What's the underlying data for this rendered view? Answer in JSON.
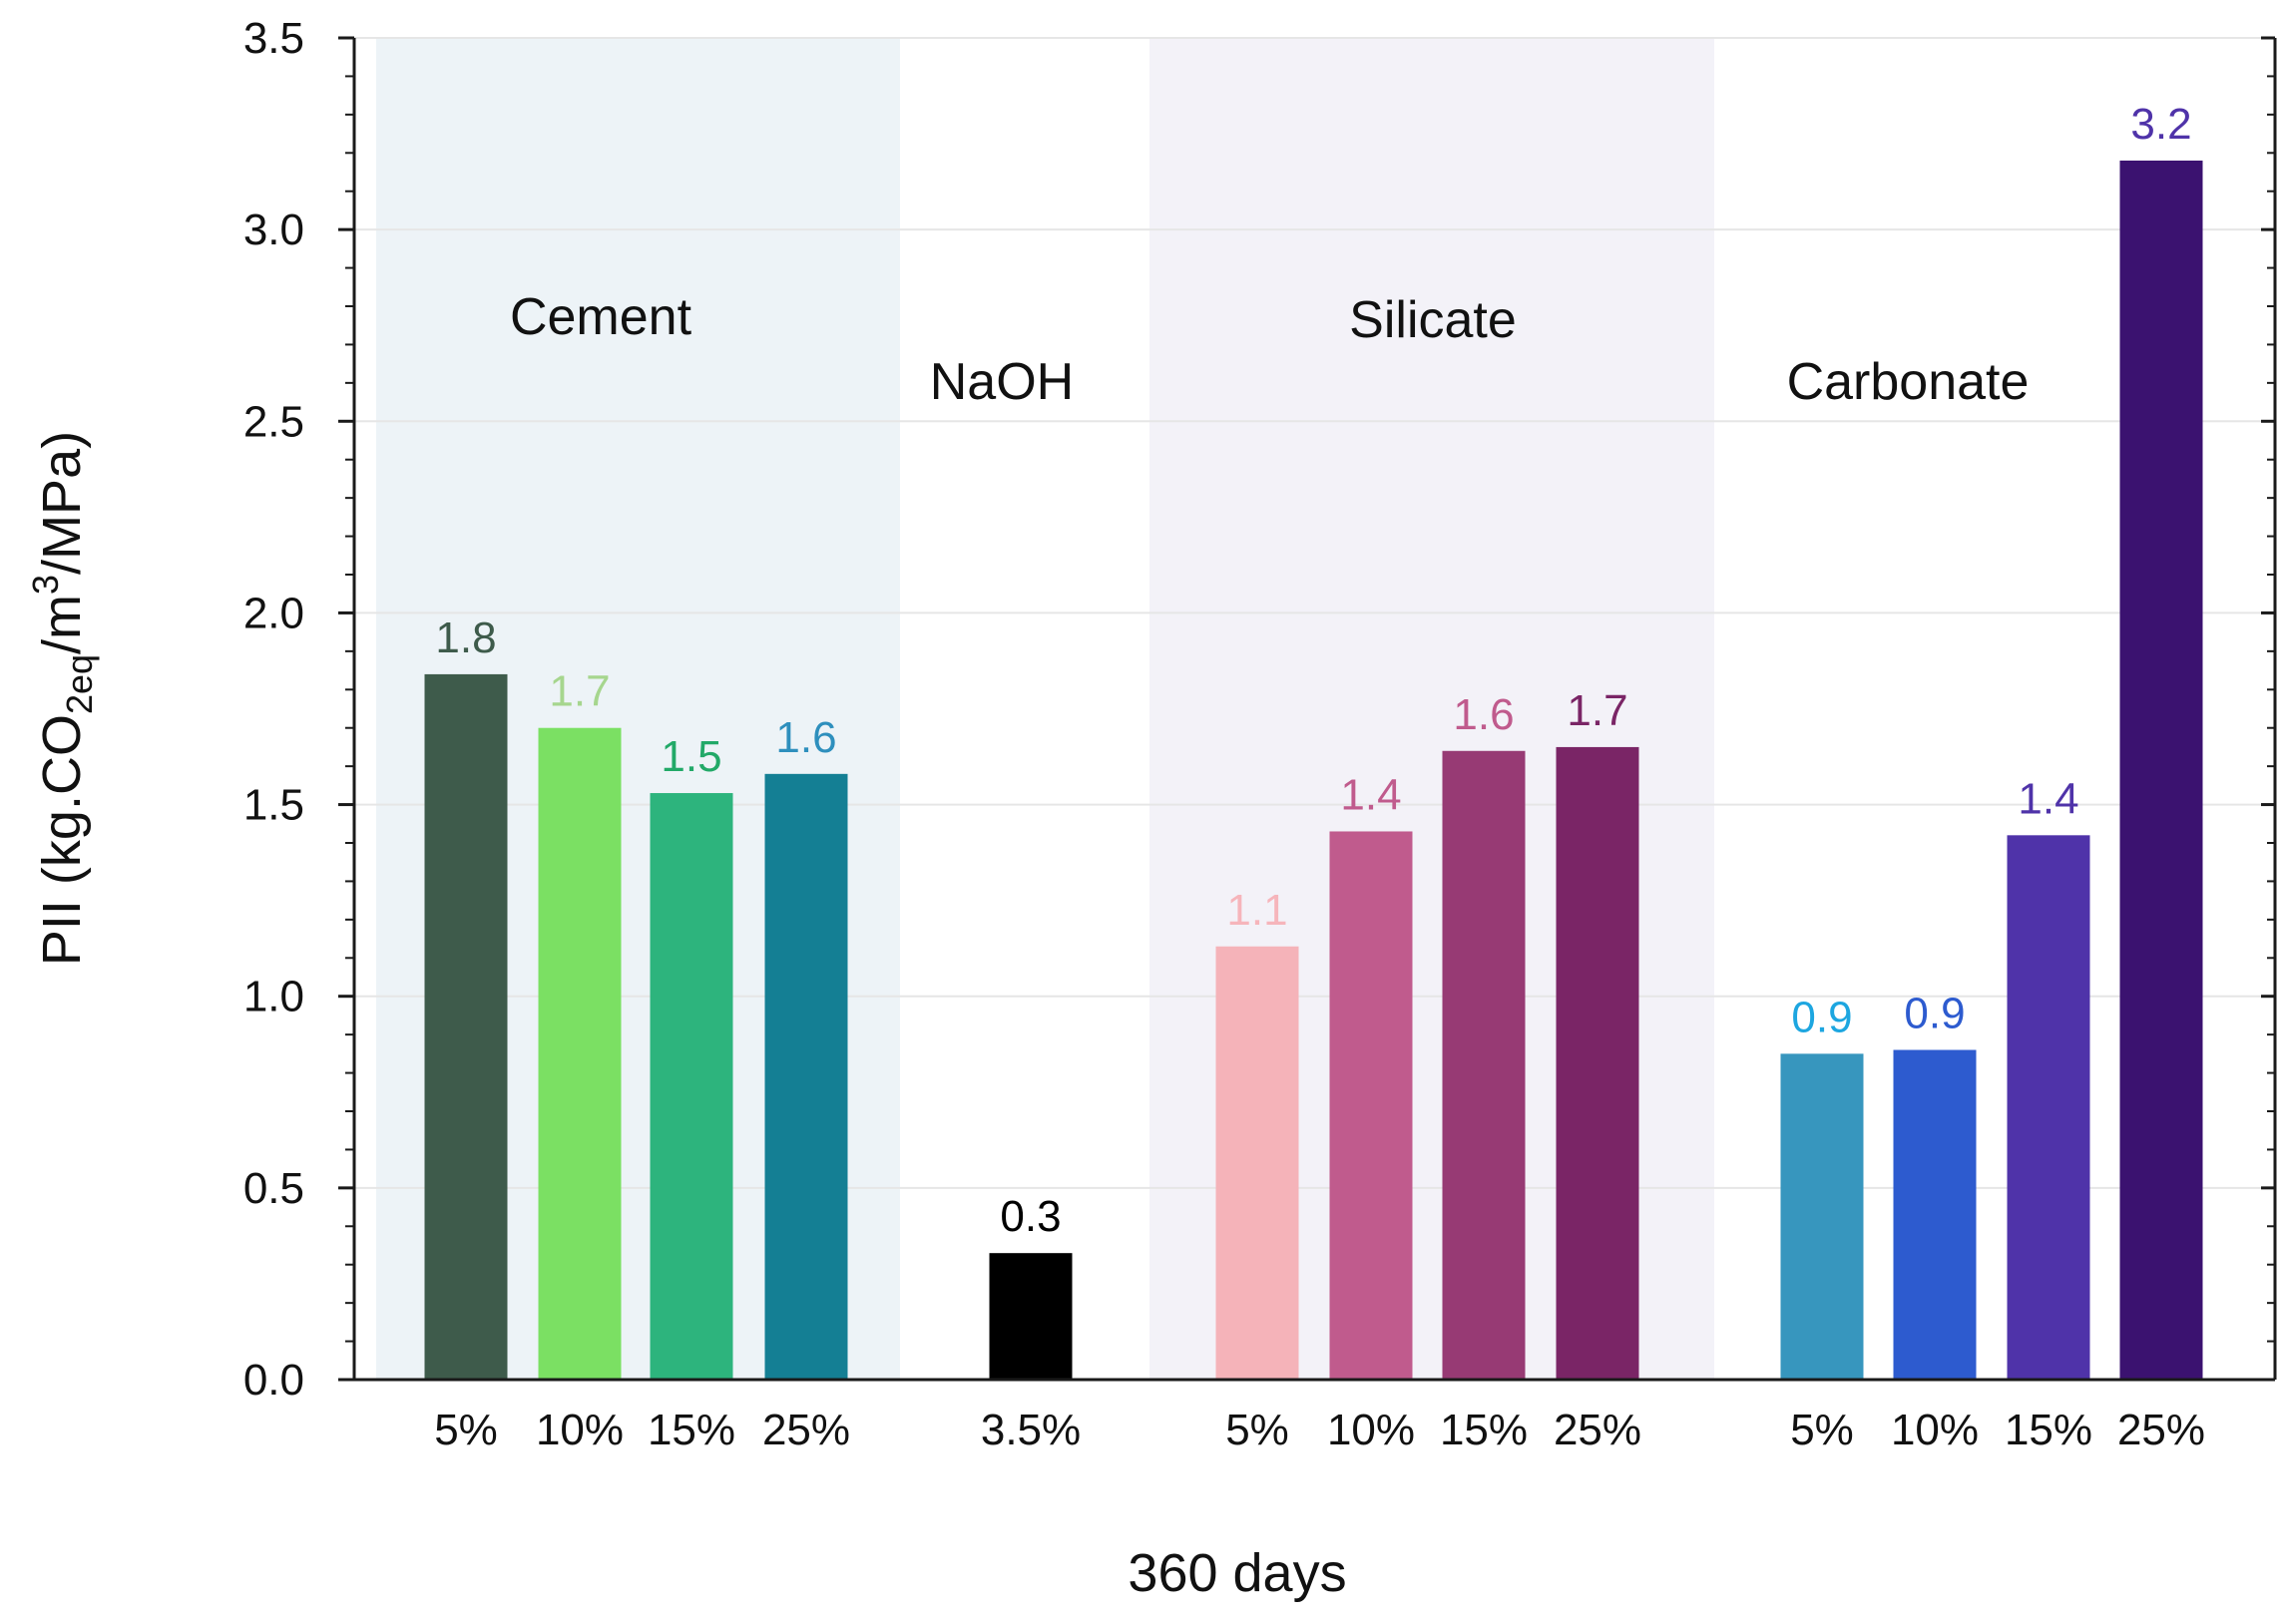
{
  "chart_data": {
    "type": "bar",
    "xlabel": "360  days",
    "ylabel": "PII (kg.CO2eq/m3/MPa)",
    "ylabel_parts": {
      "pre": "PII (kg.CO",
      "sub": "2eq",
      "mid": "/m",
      "sup": "3",
      "post": "/MPa)"
    },
    "ylim": [
      0,
      3.5
    ],
    "yticks": [
      "0.0",
      "0.5",
      "1.0",
      "1.5",
      "2.0",
      "2.5",
      "3.0",
      "3.5"
    ],
    "grid": true,
    "groups": [
      {
        "name": "Cement",
        "shaded": true,
        "shade_color": "#edf3f7",
        "bars": [
          {
            "category": "5%",
            "value": 1.84,
            "label": "1.8",
            "color": "#3e5b4b",
            "label_color": "#3e5b4b"
          },
          {
            "category": "10%",
            "value": 1.7,
            "label": "1.7",
            "color": "#7be063",
            "label_color": "#a6d68e"
          },
          {
            "category": "15%",
            "value": 1.53,
            "label": "1.5",
            "color": "#2db47d",
            "label_color": "#22a968"
          },
          {
            "category": "25%",
            "value": 1.58,
            "label": "1.6",
            "color": "#147f94",
            "label_color": "#2e8fbd"
          }
        ]
      },
      {
        "name": "NaOH",
        "shaded": false,
        "shade_color": "#ffffff",
        "bars": [
          {
            "category": "3.5%",
            "value": 0.33,
            "label": "0.3",
            "color": "#000000",
            "label_color": "#000000"
          }
        ]
      },
      {
        "name": "Silicate",
        "shaded": true,
        "shade_color": "#f3f2f8",
        "bars": [
          {
            "category": "5%",
            "value": 1.13,
            "label": "1.1",
            "color": "#f5b3b9",
            "label_color": "#f6b5bb"
          },
          {
            "category": "10%",
            "value": 1.43,
            "label": "1.4",
            "color": "#c05b8d",
            "label_color": "#c05b8d"
          },
          {
            "category": "15%",
            "value": 1.64,
            "label": "1.6",
            "color": "#973a74",
            "label_color": "#c05b8d"
          },
          {
            "category": "25%",
            "value": 1.65,
            "label": "1.7",
            "color": "#7a2566",
            "label_color": "#7a2566"
          }
        ]
      },
      {
        "name": "Carbonate",
        "shaded": false,
        "shade_color": "#ffffff",
        "bars": [
          {
            "category": "5%",
            "value": 0.85,
            "label": "0.9",
            "color": "#3796be",
            "label_color": "#1da6e0"
          },
          {
            "category": "10%",
            "value": 0.86,
            "label": "0.9",
            "color": "#2d5bcf",
            "label_color": "#2d5bcf"
          },
          {
            "category": "15%",
            "value": 1.42,
            "label": "1.4",
            "color": "#4f33a9",
            "label_color": "#4f33a9"
          },
          {
            "category": "25%",
            "value": 3.18,
            "label": "3.2",
            "color": "#3b1270",
            "label_color": "#4f33a9"
          }
        ]
      }
    ]
  }
}
